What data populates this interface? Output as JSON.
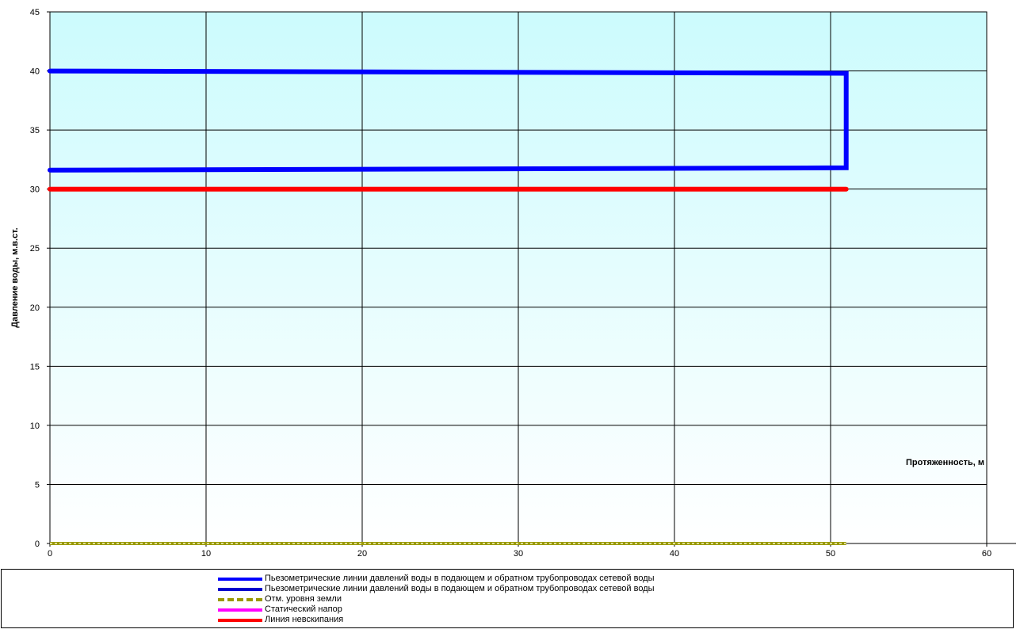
{
  "chart_data": {
    "type": "line",
    "title": "",
    "xlabel": "Протяженность, м",
    "ylabel": "Давление воды, м.в.ст.",
    "xlim": [
      0,
      60
    ],
    "ylim": [
      0,
      45
    ],
    "x_ticks": [
      0,
      10,
      20,
      30,
      40,
      50,
      60
    ],
    "y_ticks": [
      0,
      5,
      10,
      15,
      20,
      25,
      30,
      35,
      40,
      45
    ],
    "grid": true,
    "legend_position": "bottom",
    "background_gradient": [
      "#ccfbfd",
      "#ffffff"
    ],
    "series": [
      {
        "name": "Пьезометрические линии давлений воды в подающем и обратном трубопроводах сетевой воды",
        "color": "#0000ff",
        "points": [
          [
            0,
            40.0
          ],
          [
            51,
            39.8
          ],
          [
            51,
            31.8
          ],
          [
            0,
            31.6
          ]
        ]
      },
      {
        "name": "Пьезометрические линии давлений воды в подающем и обратном трубопроводах сетевой воды",
        "color": "#0000cc",
        "points": []
      },
      {
        "name": "Отм. уровня земли",
        "color": "#999900",
        "dashed": true,
        "points": [
          [
            0,
            0
          ],
          [
            51,
            0
          ]
        ]
      },
      {
        "name": "Статический напор",
        "color": "#ff00ff",
        "points": []
      },
      {
        "name": "Линия невскипания",
        "color": "#ff0000",
        "points": [
          [
            0,
            30
          ],
          [
            51,
            30
          ]
        ]
      }
    ]
  }
}
